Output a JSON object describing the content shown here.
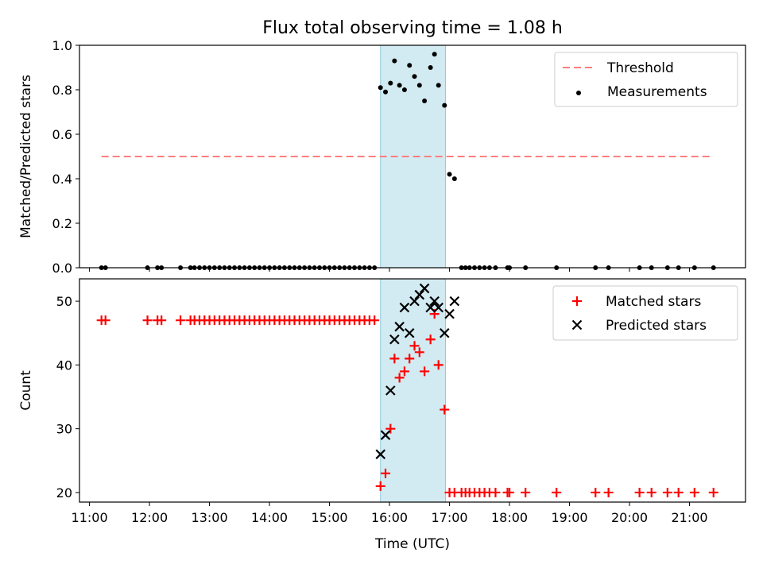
{
  "figure": {
    "title": "Flux total observing time = 1.08 h"
  },
  "chart_data": [
    {
      "type": "scatter",
      "title": "Flux total observing time = 1.08 h",
      "xlabel": "",
      "ylabel": "Matched/Predicted stars",
      "ylim": [
        0,
        1.0
      ],
      "yticks": [
        0.0,
        0.2,
        0.4,
        0.6,
        0.8,
        1.0
      ],
      "ytick_labels": [
        "0.0",
        "0.2",
        "0.4",
        "0.6",
        "0.8",
        "1.0"
      ],
      "xlim": [
        "10:50",
        "21:56"
      ],
      "shaded_region": {
        "x": [
          "15:51",
          "16:56"
        ],
        "color": "#add8e6"
      },
      "legend_position": "upper right",
      "series": [
        {
          "name": "Threshold",
          "style": "dashed-line",
          "color": "#ff7f7f",
          "x": [
            "11:12",
            "21:24"
          ],
          "y": [
            0.5,
            0.5
          ]
        },
        {
          "name": "Measurements",
          "style": "dots",
          "color": "#000000",
          "x": [
            "11:12",
            "11:16",
            "11:58",
            "12:08",
            "12:12",
            "12:31",
            "12:41",
            "12:45",
            "12:50",
            "12:55",
            "13:00",
            "13:05",
            "13:10",
            "13:15",
            "13:20",
            "13:25",
            "13:30",
            "13:35",
            "13:40",
            "13:45",
            "13:50",
            "13:55",
            "14:00",
            "14:05",
            "14:10",
            "14:15",
            "14:20",
            "14:25",
            "14:30",
            "14:35",
            "14:40",
            "14:45",
            "14:50",
            "14:55",
            "15:00",
            "15:05",
            "15:10",
            "15:15",
            "15:20",
            "15:25",
            "15:30",
            "15:35",
            "15:40",
            "15:45",
            "15:51",
            "15:56",
            "16:01",
            "16:05",
            "16:10",
            "16:15",
            "16:20",
            "16:25",
            "16:30",
            "16:35",
            "16:41",
            "16:45",
            "16:49",
            "16:55",
            "17:00",
            "17:05",
            "17:12",
            "17:16",
            "17:20",
            "17:25",
            "17:30",
            "17:35",
            "17:40",
            "17:46",
            "17:58",
            "18:00",
            "18:16",
            "18:47",
            "19:26",
            "19:39",
            "20:10",
            "20:22",
            "20:38",
            "20:49",
            "21:05",
            "21:24"
          ],
          "y": [
            0,
            0,
            0,
            0,
            0,
            0,
            0,
            0,
            0,
            0,
            0,
            0,
            0,
            0,
            0,
            0,
            0,
            0,
            0,
            0,
            0,
            0,
            0,
            0,
            0,
            0,
            0,
            0,
            0,
            0,
            0,
            0,
            0,
            0,
            0,
            0,
            0,
            0,
            0,
            0,
            0,
            0,
            0,
            0,
            0.81,
            0.79,
            0.83,
            0.93,
            0.82,
            0.8,
            0.91,
            0.86,
            0.82,
            0.75,
            0.9,
            0.96,
            0.82,
            0.73,
            0.42,
            0.4,
            0,
            0,
            0,
            0,
            0,
            0,
            0,
            0,
            0,
            0,
            0,
            0,
            0,
            0,
            0,
            0,
            0,
            0,
            0,
            0
          ]
        }
      ]
    },
    {
      "type": "scatter",
      "title": "",
      "xlabel": "Time (UTC)",
      "ylabel": "Count",
      "ylim": [
        18.5,
        53.5
      ],
      "yticks": [
        20,
        30,
        40,
        50
      ],
      "ytick_labels": [
        "20",
        "30",
        "40",
        "50"
      ],
      "xlim": [
        "10:50",
        "21:56"
      ],
      "xticks": [
        "11:00",
        "12:00",
        "13:00",
        "14:00",
        "15:00",
        "16:00",
        "17:00",
        "18:00",
        "19:00",
        "20:00",
        "21:00"
      ],
      "xtick_labels": [
        "11:00",
        "12:00",
        "13:00",
        "14:00",
        "15:00",
        "16:00",
        "17:00",
        "18:00",
        "19:00",
        "20:00",
        "21:00"
      ],
      "shaded_region": {
        "x": [
          "15:51",
          "16:56"
        ],
        "color": "#add8e6"
      },
      "legend_position": "upper right",
      "series": [
        {
          "name": "Matched stars",
          "style": "plus",
          "color": "#ff0000",
          "x": [
            "11:12",
            "11:16",
            "11:58",
            "12:08",
            "12:12",
            "12:31",
            "12:41",
            "12:45",
            "12:50",
            "12:55",
            "13:00",
            "13:05",
            "13:10",
            "13:15",
            "13:20",
            "13:25",
            "13:30",
            "13:35",
            "13:40",
            "13:45",
            "13:50",
            "13:55",
            "14:00",
            "14:05",
            "14:10",
            "14:15",
            "14:20",
            "14:25",
            "14:30",
            "14:35",
            "14:40",
            "14:45",
            "14:50",
            "14:55",
            "15:00",
            "15:05",
            "15:10",
            "15:15",
            "15:20",
            "15:25",
            "15:30",
            "15:35",
            "15:40",
            "15:45",
            "15:51",
            "15:56",
            "16:01",
            "16:05",
            "16:10",
            "16:15",
            "16:20",
            "16:25",
            "16:30",
            "16:35",
            "16:41",
            "16:45",
            "16:49",
            "16:55",
            "17:00",
            "17:05",
            "17:12",
            "17:16",
            "17:20",
            "17:25",
            "17:30",
            "17:35",
            "17:40",
            "17:46",
            "17:58",
            "18:00",
            "18:16",
            "18:47",
            "19:26",
            "19:39",
            "20:10",
            "20:22",
            "20:38",
            "20:49",
            "21:05",
            "21:24"
          ],
          "y": [
            47,
            47,
            47,
            47,
            47,
            47,
            47,
            47,
            47,
            47,
            47,
            47,
            47,
            47,
            47,
            47,
            47,
            47,
            47,
            47,
            47,
            47,
            47,
            47,
            47,
            47,
            47,
            47,
            47,
            47,
            47,
            47,
            47,
            47,
            47,
            47,
            47,
            47,
            47,
            47,
            47,
            47,
            47,
            47,
            21,
            23,
            30,
            41,
            38,
            39,
            41,
            43,
            42,
            39,
            44,
            48,
            40,
            33,
            20,
            20,
            20,
            20,
            20,
            20,
            20,
            20,
            20,
            20,
            20,
            20,
            20,
            20,
            20,
            20,
            20,
            20,
            20,
            20,
            20,
            20
          ]
        },
        {
          "name": "Predicted stars",
          "style": "x",
          "color": "#000000",
          "x": [
            "15:51",
            "15:56",
            "16:01",
            "16:05",
            "16:10",
            "16:15",
            "16:20",
            "16:25",
            "16:30",
            "16:35",
            "16:41",
            "16:45",
            "16:49",
            "16:55",
            "17:00",
            "17:05"
          ],
          "y": [
            26,
            29,
            36,
            44,
            46,
            49,
            45,
            50,
            51,
            52,
            49,
            50,
            49,
            45,
            48,
            50
          ]
        }
      ]
    }
  ]
}
